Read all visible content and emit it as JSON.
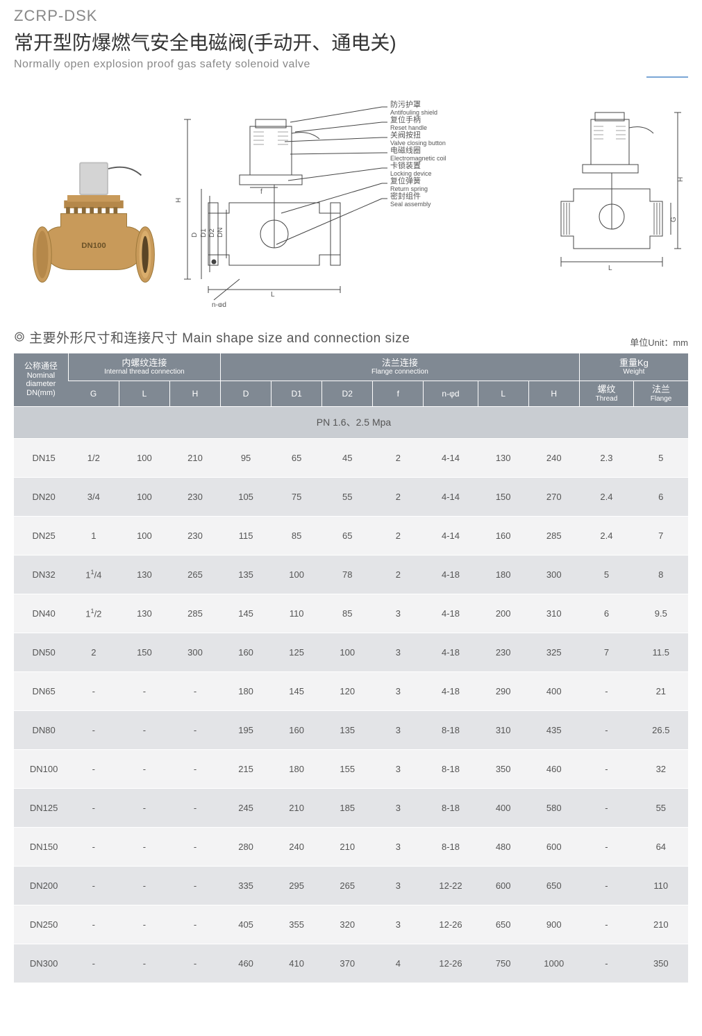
{
  "header": {
    "model_code": "ZCRP-DSK",
    "title_cn": "常开型防爆燃气安全电磁阀(手动开、通电关)",
    "title_en": "Normally open explosion proof gas safety solenoid valve"
  },
  "callouts": [
    {
      "cn": "防污护罩",
      "en": "Antifouling shield"
    },
    {
      "cn": "复位手柄",
      "en": "Reset handle"
    },
    {
      "cn": "关阀按扭",
      "en": "Valve closing button"
    },
    {
      "cn": "电磁线圈",
      "en": "Electromagnetic coil"
    },
    {
      "cn": "卡锁装置",
      "en": "Locking device"
    },
    {
      "cn": "复位弹簧",
      "en": "Return spring"
    },
    {
      "cn": "密封组件",
      "en": "Seal assembly"
    }
  ],
  "diagram_dims": {
    "left": [
      "H",
      "D",
      "D1",
      "D2",
      "DN",
      "f",
      "L",
      "n-φd"
    ],
    "right": [
      "H",
      "G",
      "L"
    ]
  },
  "section": {
    "title": "主要外形尺寸和连接尺寸 Main shape size and connection size",
    "unit_label": "单位Unit：mm"
  },
  "table": {
    "header": {
      "dn": {
        "cn": "公称通径",
        "en1": "Nominal",
        "en2": "diameter",
        "en3": "DN(mm)"
      },
      "internal": {
        "cn": "内螺纹连接",
        "en": "Internal thread connection"
      },
      "flange": {
        "cn": "法兰连接",
        "en": "Flange connection"
      },
      "weight": {
        "cn": "重量Kg",
        "en": "Weight"
      },
      "cols": {
        "G": "G",
        "L1": "L",
        "H1": "H",
        "D": "D",
        "D1": "D1",
        "D2": "D2",
        "f": "f",
        "nd": "n-φd",
        "L2": "L",
        "H2": "H",
        "thread": {
          "cn": "螺纹",
          "en": "Thread"
        },
        "flangeW": {
          "cn": "法兰",
          "en": "Flange"
        }
      }
    },
    "pn_row": "PN 1.6、2.5 Mpa",
    "rows": [
      {
        "dn": "DN15",
        "G": "1/2",
        "L1": "100",
        "H1": "210",
        "D": "95",
        "D1": "65",
        "D2": "45",
        "f": "2",
        "nd": "4-14",
        "L2": "130",
        "H2": "240",
        "wT": "2.3",
        "wF": "5"
      },
      {
        "dn": "DN20",
        "G": "3/4",
        "L1": "100",
        "H1": "230",
        "D": "105",
        "D1": "75",
        "D2": "55",
        "f": "2",
        "nd": "4-14",
        "L2": "150",
        "H2": "270",
        "wT": "2.4",
        "wF": "6"
      },
      {
        "dn": "DN25",
        "G": "1",
        "L1": "100",
        "H1": "230",
        "D": "115",
        "D1": "85",
        "D2": "65",
        "f": "2",
        "nd": "4-14",
        "L2": "160",
        "H2": "285",
        "wT": "2.4",
        "wF": "7"
      },
      {
        "dn": "DN32",
        "G": "1¹/4",
        "L1": "130",
        "H1": "265",
        "D": "135",
        "D1": "100",
        "D2": "78",
        "f": "2",
        "nd": "4-18",
        "L2": "180",
        "H2": "300",
        "wT": "5",
        "wF": "8"
      },
      {
        "dn": "DN40",
        "G": "1¹/2",
        "L1": "130",
        "H1": "285",
        "D": "145",
        "D1": "110",
        "D2": "85",
        "f": "3",
        "nd": "4-18",
        "L2": "200",
        "H2": "310",
        "wT": "6",
        "wF": "9.5"
      },
      {
        "dn": "DN50",
        "G": "2",
        "L1": "150",
        "H1": "300",
        "D": "160",
        "D1": "125",
        "D2": "100",
        "f": "3",
        "nd": "4-18",
        "L2": "230",
        "H2": "325",
        "wT": "7",
        "wF": "11.5"
      },
      {
        "dn": "DN65",
        "G": "-",
        "L1": "-",
        "H1": "-",
        "D": "180",
        "D1": "145",
        "D2": "120",
        "f": "3",
        "nd": "4-18",
        "L2": "290",
        "H2": "400",
        "wT": "-",
        "wF": "21"
      },
      {
        "dn": "DN80",
        "G": "-",
        "L1": "-",
        "H1": "-",
        "D": "195",
        "D1": "160",
        "D2": "135",
        "f": "3",
        "nd": "8-18",
        "L2": "310",
        "H2": "435",
        "wT": "-",
        "wF": "26.5"
      },
      {
        "dn": "DN100",
        "G": "-",
        "L1": "-",
        "H1": "-",
        "D": "215",
        "D1": "180",
        "D2": "155",
        "f": "3",
        "nd": "8-18",
        "L2": "350",
        "H2": "460",
        "wT": "-",
        "wF": "32"
      },
      {
        "dn": "DN125",
        "G": "-",
        "L1": "-",
        "H1": "-",
        "D": "245",
        "D1": "210",
        "D2": "185",
        "f": "3",
        "nd": "8-18",
        "L2": "400",
        "H2": "580",
        "wT": "-",
        "wF": "55"
      },
      {
        "dn": "DN150",
        "G": "-",
        "L1": "-",
        "H1": "-",
        "D": "280",
        "D1": "240",
        "D2": "210",
        "f": "3",
        "nd": "8-18",
        "L2": "480",
        "H2": "600",
        "wT": "-",
        "wF": "64"
      },
      {
        "dn": "DN200",
        "G": "-",
        "L1": "-",
        "H1": "-",
        "D": "335",
        "D1": "295",
        "D2": "265",
        "f": "3",
        "nd": "12-22",
        "L2": "600",
        "H2": "650",
        "wT": "-",
        "wF": "110"
      },
      {
        "dn": "DN250",
        "G": "-",
        "L1": "-",
        "H1": "-",
        "D": "405",
        "D1": "355",
        "D2": "320",
        "f": "3",
        "nd": "12-26",
        "L2": "650",
        "H2": "900",
        "wT": "-",
        "wF": "210"
      },
      {
        "dn": "DN300",
        "G": "-",
        "L1": "-",
        "H1": "-",
        "D": "460",
        "D1": "410",
        "D2": "370",
        "f": "4",
        "nd": "12-26",
        "L2": "750",
        "H2": "1000",
        "wT": "-",
        "wF": "350"
      }
    ]
  },
  "style": {
    "header_bg": "#808993",
    "row_odd_bg": "#f3f3f4",
    "row_even_bg": "#e3e4e7",
    "pn_row_bg": "#c9cdd2",
    "text_color": "#555555",
    "accent_line": "#7aa6d6",
    "valve_body_color": "#c89a5a",
    "valve_top_color": "#b8b8b8"
  }
}
